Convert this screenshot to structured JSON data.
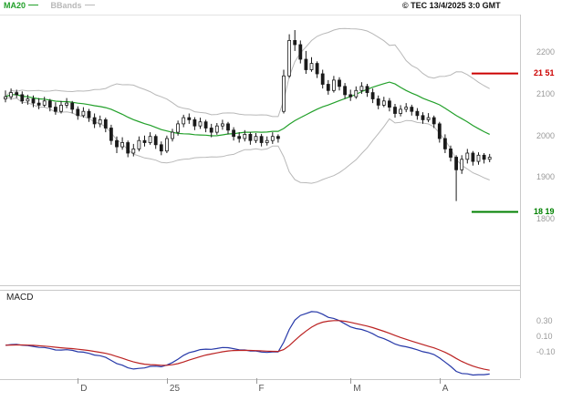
{
  "header": {
    "copyright": "© TEC 13/4/2025 3:0 GMT",
    "legend": [
      {
        "label": "MA20",
        "color": "#22a02a"
      },
      {
        "label": "BBands",
        "color": "#b8b8b8"
      }
    ]
  },
  "macd_panel": {
    "title": "MACD"
  },
  "colors": {
    "candle": "#1a1a1a",
    "ma_line": "#22a02a",
    "band_line": "#b8b8b8",
    "macd_line": "#2638a8",
    "macd_signal": "#bb2222",
    "axis_text": "#999999",
    "x_axis_text": "#555555",
    "resistance": "#cc0000",
    "support": "#008000"
  },
  "chart_data": {
    "type": "candlestick",
    "title": "",
    "x_ticks": [
      {
        "index": 13,
        "label": "D"
      },
      {
        "index": 29,
        "label": "25"
      },
      {
        "index": 45,
        "label": "F"
      },
      {
        "index": 62,
        "label": "M"
      },
      {
        "index": 78,
        "label": "A"
      }
    ],
    "price_axis": {
      "ylim": [
        16.43,
        22.9
      ],
      "ticks": [
        {
          "value": 22.0,
          "label": "2200"
        },
        {
          "value": 21.0,
          "label": "2100"
        },
        {
          "value": 20.0,
          "label": "2000"
        },
        {
          "value": 19.0,
          "label": "1900"
        },
        {
          "value": 18.0,
          "label": "1800"
        }
      ]
    },
    "hlines": [
      {
        "value": 21.51,
        "label": "21 51",
        "color": "#cc0000"
      },
      {
        "value": 18.19,
        "label": "18 19",
        "color": "#008000"
      }
    ],
    "macd_axis": {
      "ylim": [
        -0.43,
        0.69
      ],
      "ticks": [
        {
          "value": 0.3,
          "label": "0.30"
        },
        {
          "value": 0.1,
          "label": "0.10"
        },
        {
          "value": -0.1,
          "label": "-0.10"
        }
      ]
    },
    "indicators": {
      "ma_period": 20,
      "bb_period": 20,
      "bb_stddev": 2,
      "macd": [
        12,
        26,
        9
      ]
    },
    "candles": [
      [
        20.9,
        21.1,
        20.82,
        20.95
      ],
      [
        20.95,
        21.15,
        20.88,
        21.05
      ],
      [
        21.05,
        21.12,
        20.92,
        21.0
      ],
      [
        21.0,
        21.08,
        20.78,
        20.85
      ],
      [
        20.85,
        21.0,
        20.76,
        20.9
      ],
      [
        20.9,
        20.98,
        20.7,
        20.8
      ],
      [
        20.8,
        20.92,
        20.65,
        20.75
      ],
      [
        20.75,
        20.95,
        20.7,
        20.85
      ],
      [
        20.85,
        20.9,
        20.6,
        20.7
      ],
      [
        20.7,
        20.82,
        20.52,
        20.6
      ],
      [
        20.6,
        20.85,
        20.55,
        20.75
      ],
      [
        20.75,
        20.92,
        20.68,
        20.8
      ],
      [
        20.8,
        20.85,
        20.55,
        20.65
      ],
      [
        20.65,
        20.72,
        20.4,
        20.5
      ],
      [
        20.5,
        20.7,
        20.45,
        20.6
      ],
      [
        20.6,
        20.66,
        20.35,
        20.45
      ],
      [
        20.45,
        20.55,
        20.2,
        20.3
      ],
      [
        20.3,
        20.5,
        20.22,
        20.4
      ],
      [
        20.4,
        20.45,
        20.1,
        20.2
      ],
      [
        20.2,
        20.28,
        19.8,
        19.9
      ],
      [
        19.9,
        20.0,
        19.6,
        19.75
      ],
      [
        19.75,
        19.98,
        19.68,
        19.85
      ],
      [
        19.85,
        19.9,
        19.5,
        19.6
      ],
      [
        19.6,
        19.82,
        19.52,
        19.7
      ],
      [
        19.7,
        20.0,
        19.64,
        19.9
      ],
      [
        19.9,
        20.02,
        19.76,
        19.85
      ],
      [
        19.85,
        20.1,
        19.8,
        20.0
      ],
      [
        20.0,
        20.05,
        19.7,
        19.8
      ],
      [
        19.8,
        19.88,
        19.55,
        19.65
      ],
      [
        19.65,
        20.02,
        19.6,
        19.95
      ],
      [
        19.95,
        20.18,
        19.88,
        20.1
      ],
      [
        20.1,
        20.38,
        20.02,
        20.3
      ],
      [
        20.3,
        20.52,
        20.22,
        20.45
      ],
      [
        20.45,
        20.55,
        20.3,
        20.4
      ],
      [
        20.4,
        20.46,
        20.15,
        20.25
      ],
      [
        20.25,
        20.45,
        20.18,
        20.35
      ],
      [
        20.35,
        20.4,
        20.1,
        20.2
      ],
      [
        20.2,
        20.3,
        19.98,
        20.1
      ],
      [
        20.1,
        20.32,
        20.04,
        20.25
      ],
      [
        20.25,
        20.4,
        20.16,
        20.3
      ],
      [
        20.3,
        20.35,
        20.05,
        20.15
      ],
      [
        20.15,
        20.22,
        19.9,
        20.0
      ],
      [
        20.0,
        20.1,
        19.85,
        19.95
      ],
      [
        19.95,
        20.15,
        19.88,
        20.05
      ],
      [
        20.05,
        20.1,
        19.8,
        19.9
      ],
      [
        19.9,
        20.08,
        19.84,
        20.0
      ],
      [
        20.0,
        20.06,
        19.76,
        19.85
      ],
      [
        19.85,
        20.0,
        19.78,
        19.9
      ],
      [
        19.9,
        20.1,
        19.82,
        20.0
      ],
      [
        20.0,
        20.05,
        19.85,
        19.95
      ],
      [
        20.6,
        21.6,
        20.55,
        21.45
      ],
      [
        21.45,
        22.45,
        21.4,
        22.3
      ],
      [
        22.3,
        22.55,
        22.05,
        22.2
      ],
      [
        22.2,
        22.3,
        21.75,
        21.85
      ],
      [
        21.85,
        22.05,
        21.5,
        21.6
      ],
      [
        21.6,
        21.9,
        21.55,
        21.75
      ],
      [
        21.75,
        21.8,
        21.4,
        21.5
      ],
      [
        21.5,
        21.6,
        21.15,
        21.25
      ],
      [
        21.25,
        21.35,
        21.0,
        21.1
      ],
      [
        21.1,
        21.45,
        21.05,
        21.35
      ],
      [
        21.35,
        21.42,
        21.1,
        21.2
      ],
      [
        21.2,
        21.28,
        20.9,
        21.0
      ],
      [
        21.0,
        21.12,
        20.85,
        20.95
      ],
      [
        20.95,
        21.2,
        20.9,
        21.1
      ],
      [
        21.1,
        21.3,
        21.02,
        21.2
      ],
      [
        21.2,
        21.26,
        20.95,
        21.05
      ],
      [
        21.05,
        21.15,
        20.8,
        20.9
      ],
      [
        20.9,
        20.98,
        20.65,
        20.75
      ],
      [
        20.75,
        20.95,
        20.7,
        20.85
      ],
      [
        20.85,
        20.92,
        20.6,
        20.7
      ],
      [
        20.7,
        20.78,
        20.45,
        20.55
      ],
      [
        20.55,
        20.75,
        20.48,
        20.65
      ],
      [
        20.65,
        20.8,
        20.58,
        20.7
      ],
      [
        20.7,
        20.76,
        20.5,
        20.6
      ],
      [
        20.6,
        20.68,
        20.4,
        20.5
      ],
      [
        20.5,
        20.58,
        20.3,
        20.4
      ],
      [
        20.4,
        20.56,
        20.34,
        20.45
      ],
      [
        20.45,
        20.5,
        20.2,
        20.3
      ],
      [
        20.3,
        20.35,
        19.85,
        19.95
      ],
      [
        19.95,
        20.05,
        19.6,
        19.7
      ],
      [
        19.7,
        19.78,
        19.4,
        19.5
      ],
      [
        19.5,
        19.55,
        18.45,
        19.2
      ],
      [
        19.2,
        19.55,
        19.1,
        19.45
      ],
      [
        19.45,
        19.7,
        19.35,
        19.6
      ],
      [
        19.6,
        19.65,
        19.3,
        19.4
      ],
      [
        19.4,
        19.62,
        19.32,
        19.55
      ],
      [
        19.55,
        19.6,
        19.35,
        19.45
      ],
      [
        19.45,
        19.58,
        19.38,
        19.5
      ]
    ]
  }
}
